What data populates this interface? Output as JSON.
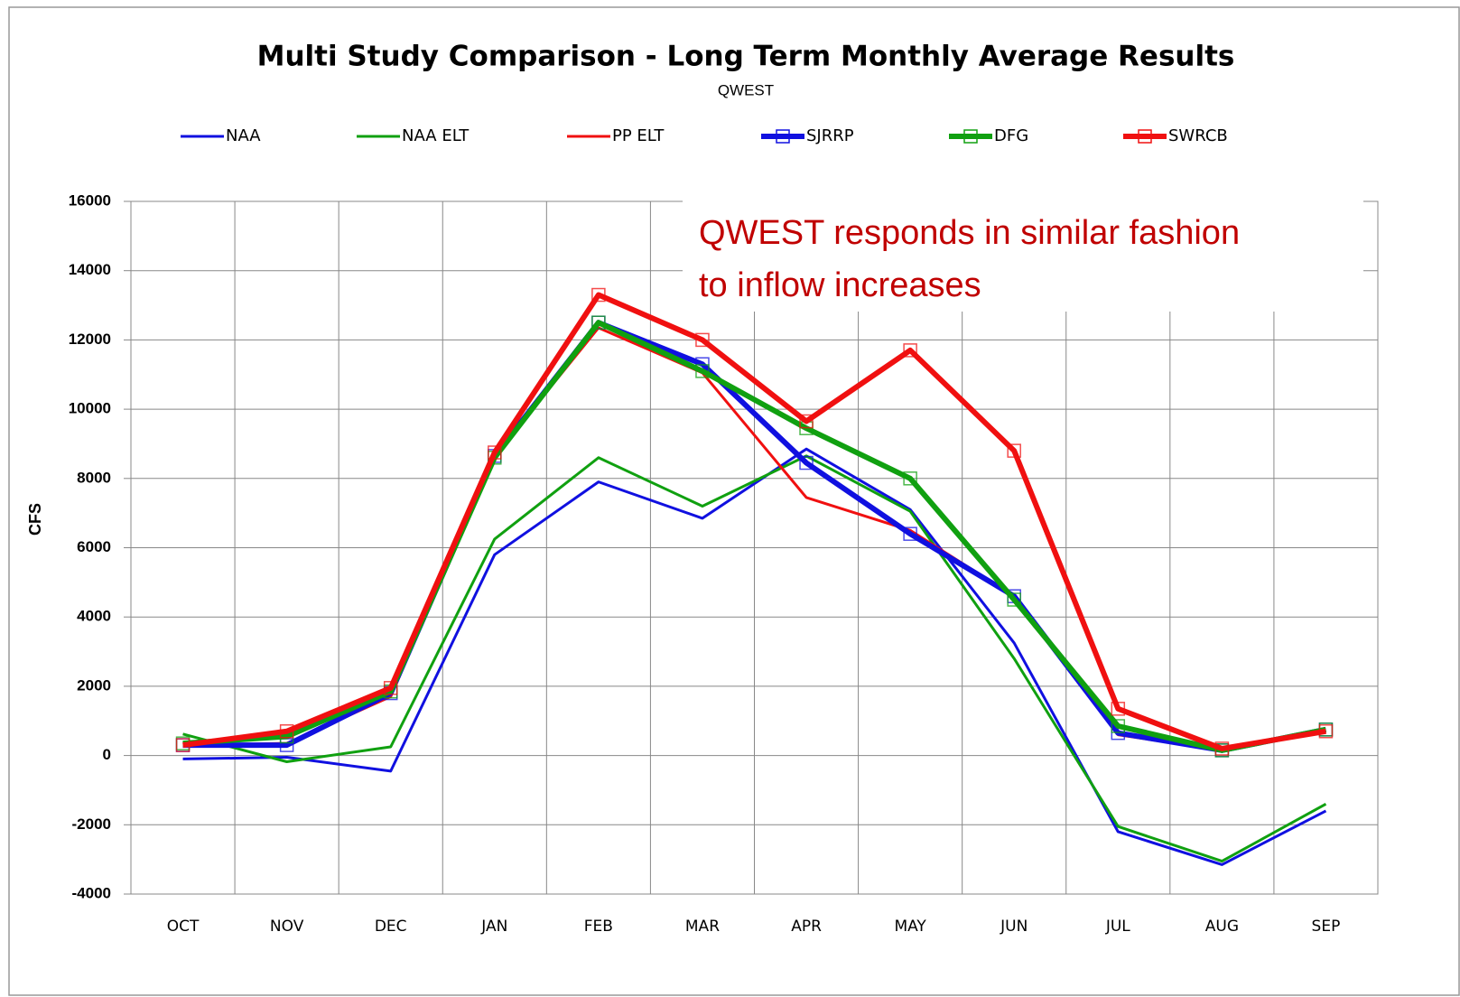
{
  "chart_data": {
    "type": "line",
    "title": "Multi Study Comparison - Long Term Monthly Average Results",
    "subtitle": "QWEST",
    "y_label": "CFS",
    "annotation": [
      "QWEST responds in similar fashion",
      "to inflow increases"
    ],
    "categories": [
      "OCT",
      "NOV",
      "DEC",
      "JAN",
      "FEB",
      "MAR",
      "APR",
      "MAY",
      "JUN",
      "JUL",
      "AUG",
      "SEP"
    ],
    "ylim": [
      -4000,
      16000
    ],
    "yticks": [
      -4000,
      -2000,
      0,
      2000,
      4000,
      6000,
      8000,
      10000,
      12000,
      14000,
      16000
    ],
    "grid": true,
    "legend": "top",
    "series": [
      {
        "name": "NAA",
        "color": "#1010e0",
        "width": 3,
        "markers": false,
        "values": [
          -100,
          -50,
          -450,
          5800,
          7900,
          6850,
          8850,
          7100,
          3250,
          -2200,
          -3150,
          -1600
        ]
      },
      {
        "name": "NAA ELT",
        "color": "#10a010",
        "width": 3,
        "markers": false,
        "values": [
          620,
          -180,
          250,
          6250,
          8600,
          7200,
          8650,
          7050,
          2800,
          -2050,
          -3050,
          -1400
        ]
      },
      {
        "name": "PP ELT",
        "color": "#f01010",
        "width": 3,
        "markers": false,
        "values": [
          300,
          350,
          1700,
          8650,
          12350,
          11050,
          7450,
          6500,
          4600,
          600,
          150,
          700
        ]
      },
      {
        "name": "SJRRP",
        "color": "#1010e0",
        "width": 6,
        "markers": true,
        "values": [
          300,
          300,
          1800,
          8650,
          12500,
          11300,
          8450,
          6400,
          4600,
          650,
          150,
          750
        ]
      },
      {
        "name": "DFG",
        "color": "#10a010",
        "width": 6,
        "markers": true,
        "values": [
          350,
          550,
          1850,
          8600,
          12500,
          11100,
          9450,
          8000,
          4500,
          850,
          150,
          750
        ]
      },
      {
        "name": "SWRCB",
        "color": "#f01010",
        "width": 6,
        "markers": true,
        "values": [
          300,
          700,
          1950,
          8750,
          13300,
          12000,
          9650,
          11700,
          8800,
          1350,
          200,
          700
        ]
      }
    ]
  }
}
